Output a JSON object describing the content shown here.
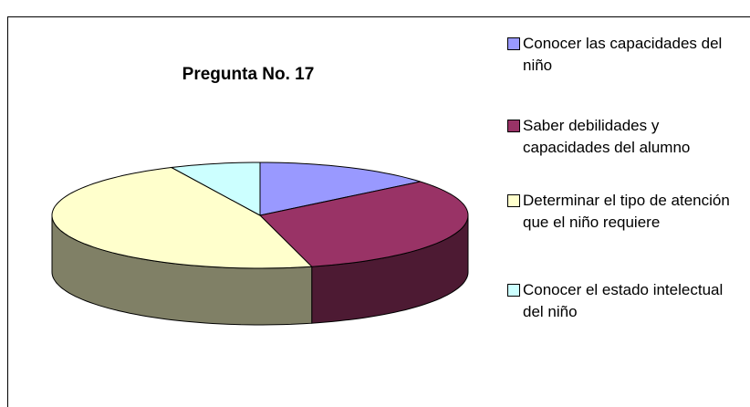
{
  "chart_data": {
    "type": "pie",
    "title": "Pregunta No. 17",
    "categories": [
      "Conocer las capacidades del niño",
      "Saber debilidades y capacidades del alumno",
      "Determinar el tipo de atención que el niño requiere",
      "Conocer el estado intelectual del niño"
    ],
    "values": [
      14,
      32,
      47,
      7
    ],
    "colors": [
      "#9999ff",
      "#993366",
      "#ffffcc",
      "#ccffff"
    ],
    "legend": "right"
  }
}
